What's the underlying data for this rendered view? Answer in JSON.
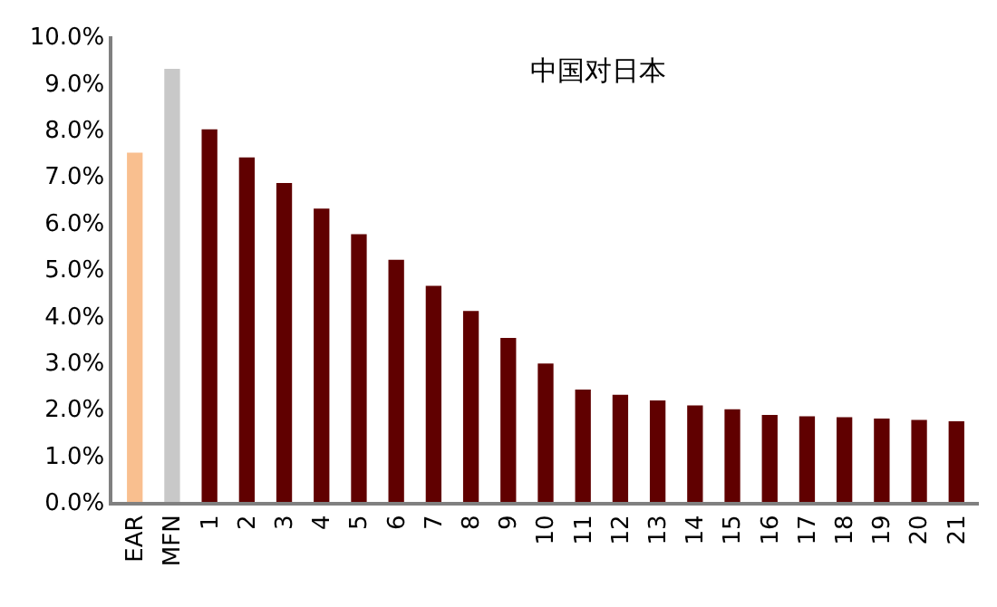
{
  "chart_data": {
    "type": "bar",
    "title": "中国对日本",
    "categories": [
      "EAR",
      "MFN",
      "1",
      "2",
      "3",
      "4",
      "5",
      "6",
      "7",
      "8",
      "9",
      "10",
      "11",
      "12",
      "13",
      "14",
      "15",
      "16",
      "17",
      "18",
      "19",
      "20",
      "21"
    ],
    "values": [
      7.5,
      9.3,
      8.0,
      7.4,
      6.85,
      6.3,
      5.75,
      5.2,
      4.64,
      4.1,
      3.52,
      2.97,
      2.41,
      2.3,
      2.18,
      2.07,
      1.99,
      1.87,
      1.84,
      1.82,
      1.79,
      1.76,
      1.73
    ],
    "colors": [
      "#f9bf8f",
      "#c8c8c8",
      "#600000",
      "#600000",
      "#600000",
      "#600000",
      "#600000",
      "#600000",
      "#600000",
      "#600000",
      "#600000",
      "#600000",
      "#600000",
      "#600000",
      "#600000",
      "#600000",
      "#600000",
      "#600000",
      "#600000",
      "#600000",
      "#600000",
      "#600000",
      "#600000"
    ],
    "ylim": [
      0,
      10
    ],
    "yticks": [
      {
        "value": 0,
        "label": "0.0%"
      },
      {
        "value": 1,
        "label": "1.0%"
      },
      {
        "value": 2,
        "label": "2.0%"
      },
      {
        "value": 3,
        "label": "3.0%"
      },
      {
        "value": 4,
        "label": "4.0%"
      },
      {
        "value": 5,
        "label": "5.0%"
      },
      {
        "value": 6,
        "label": "6.0%"
      },
      {
        "value": 7,
        "label": "7.0%"
      },
      {
        "value": 8,
        "label": "8.0%"
      },
      {
        "value": 9,
        "label": "9.0%"
      },
      {
        "value": 10,
        "label": "10.0%"
      }
    ]
  }
}
